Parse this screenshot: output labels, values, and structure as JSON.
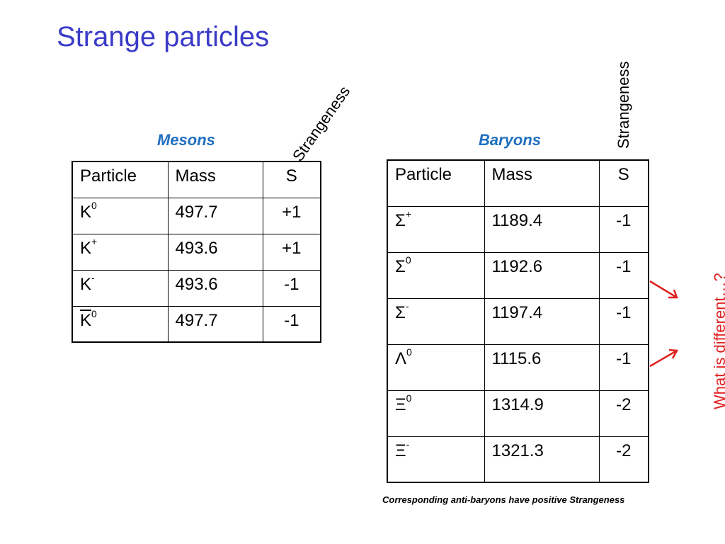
{
  "title": "Strange particles",
  "mesons": {
    "label": "Mesons",
    "rotated_header": "Strangeness",
    "columns": [
      "Particle",
      "Mass",
      "S"
    ],
    "rows": [
      {
        "symbol": "K",
        "sup": "0",
        "bar": false,
        "mass": "497.7",
        "s": "+1"
      },
      {
        "symbol": "K",
        "sup": "+",
        "bar": false,
        "mass": "493.6",
        "s": "+1"
      },
      {
        "symbol": "K",
        "sup": "-",
        "bar": false,
        "mass": "493.6",
        "s": "-1"
      },
      {
        "symbol": "K",
        "sup": "0",
        "bar": true,
        "mass": "497.7",
        "s": "-1"
      }
    ]
  },
  "baryons": {
    "label": "Baryons",
    "rotated_header": "Strangeness",
    "columns": [
      "Particle",
      "Mass",
      "S"
    ],
    "rows": [
      {
        "symbol": "Σ",
        "sup": "+",
        "mass": "1189.4",
        "s": "-1"
      },
      {
        "symbol": "Σ",
        "sup": "0",
        "mass": "1192.6",
        "s": "-1"
      },
      {
        "symbol": "Σ",
        "sup": "-",
        "mass": "1197.4",
        "s": "-1"
      },
      {
        "symbol": "Λ",
        "sup": "0",
        "mass": "1115.6",
        "s": "-1"
      },
      {
        "symbol": "Ξ",
        "sup": "0",
        "mass": "1314.9",
        "s": "-2"
      },
      {
        "symbol": "Ξ",
        "sup": "-",
        "mass": "1321.3",
        "s": "-2"
      }
    ]
  },
  "footnote": "Corresponding anti-baryons have positive Strangeness",
  "side_question": "What is different…?",
  "colors": {
    "title": "#3a3ac8",
    "section_label": "#1f6fc0",
    "accent": "#e02020"
  }
}
